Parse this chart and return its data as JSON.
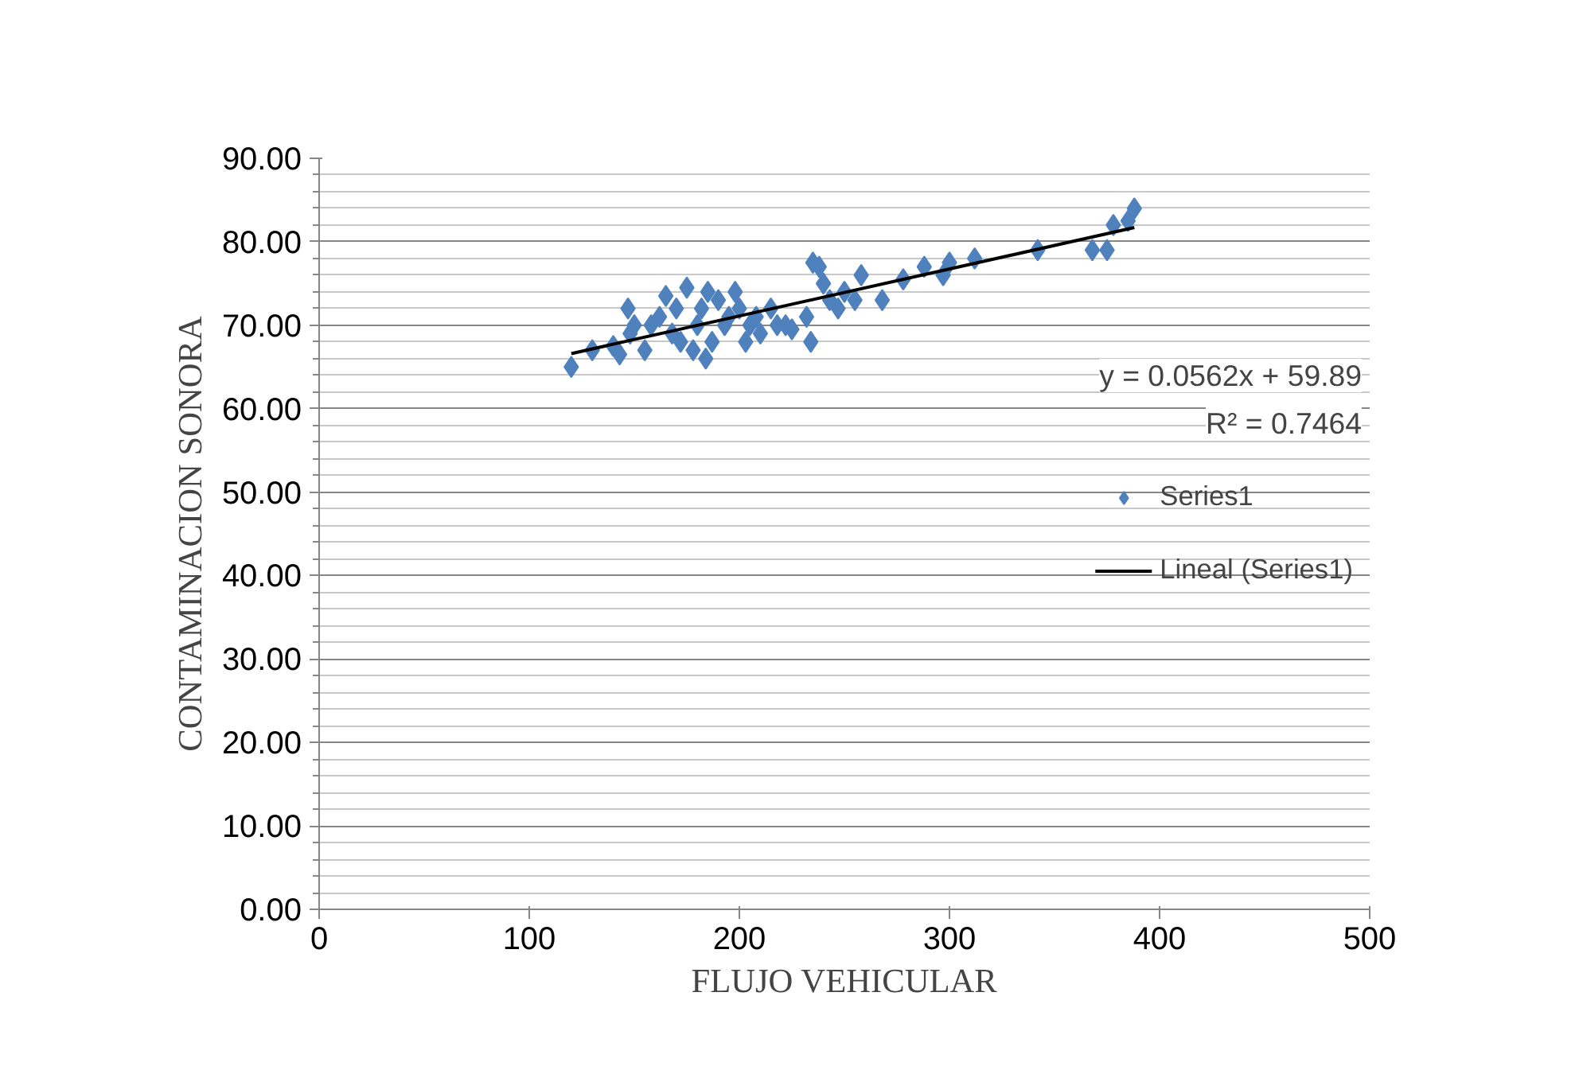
{
  "chart_data": {
    "type": "scatter",
    "xlabel": "FLUJO VEHICULAR",
    "ylabel": "CONTAMINACION SONORA",
    "xlim": [
      0,
      500
    ],
    "xticks": [
      0,
      100,
      200,
      300,
      400,
      500
    ],
    "ylim": [
      0,
      90
    ],
    "yticks": [
      {
        "value": 0,
        "label": "0.00"
      },
      {
        "value": 10,
        "label": "10.00"
      },
      {
        "value": 20,
        "label": "20.00"
      },
      {
        "value": 30,
        "label": "30.00"
      },
      {
        "value": 40,
        "label": "40.00"
      },
      {
        "value": 50,
        "label": "50.00"
      },
      {
        "value": 60,
        "label": "60.00"
      },
      {
        "value": 70,
        "label": "70.00"
      },
      {
        "value": 80,
        "label": "80.00"
      },
      {
        "value": 90,
        "label": "90.00"
      }
    ],
    "grid": "y",
    "legend": "right",
    "marker": "diamond",
    "annotations": [
      "y = 0.0562x + 59.89",
      "R² = 0.7464"
    ],
    "series": [
      {
        "name": "Series1",
        "color": "#4f81bd",
        "x": [
          120,
          130,
          140,
          143,
          147,
          148,
          150,
          155,
          158,
          162,
          165,
          168,
          170,
          172,
          175,
          178,
          180,
          182,
          184,
          185,
          187,
          190,
          193,
          195,
          198,
          200,
          203,
          205,
          208,
          210,
          215,
          218,
          222,
          225,
          232,
          234,
          235,
          238,
          240,
          243,
          247,
          250,
          255,
          258,
          268,
          278,
          288,
          297,
          300,
          312,
          342,
          368,
          375,
          378,
          385,
          388
        ],
        "values": [
          65,
          67,
          67.5,
          66.5,
          72,
          69,
          70,
          67,
          70,
          71,
          73.5,
          69,
          72,
          68,
          74.5,
          67,
          70,
          72,
          66,
          74,
          68,
          73,
          70,
          71,
          74,
          72,
          68,
          70,
          71,
          69,
          72,
          70,
          70,
          69.5,
          71,
          68,
          77.5,
          77,
          75,
          73,
          72,
          74,
          73,
          76,
          73,
          75.5,
          77,
          76,
          77.5,
          78,
          79,
          79,
          79,
          82,
          82.5,
          84
        ]
      },
      {
        "name": "Lineal (Series1)",
        "type": "line",
        "color": "#000000",
        "x": [
          120,
          388
        ],
        "values": [
          66.6,
          81.7
        ],
        "marker": "none"
      }
    ]
  }
}
